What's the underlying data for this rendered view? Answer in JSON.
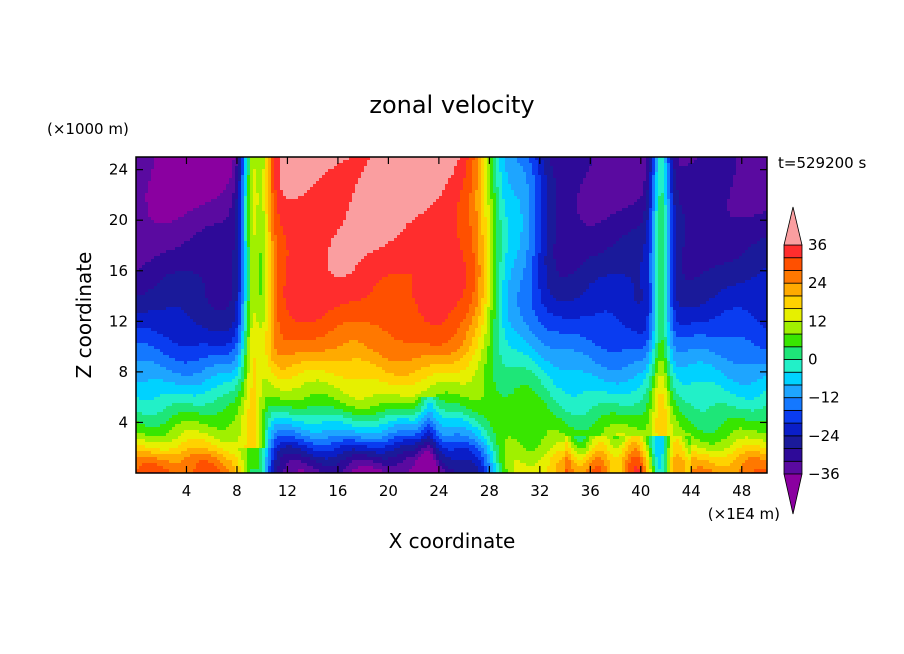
{
  "chart_data": {
    "type": "heatmap",
    "title": "zonal velocity",
    "xlabel": "X coordinate",
    "ylabel": "Z coordinate",
    "x_unit": "(×1E4 m)",
    "y_unit": "(×1000 m)",
    "time_label": "t=529200 s",
    "xlim": [
      0,
      50
    ],
    "ylim": [
      0,
      25
    ],
    "x_ticks": [
      4,
      8,
      12,
      16,
      20,
      24,
      28,
      32,
      36,
      40,
      44,
      48
    ],
    "y_ticks": [
      4,
      8,
      12,
      16,
      20,
      24
    ],
    "colorbar": {
      "levels": [
        -40,
        -36,
        -32,
        -28,
        -24,
        -20,
        -16,
        -12,
        -8,
        -4,
        0,
        4,
        8,
        12,
        16,
        20,
        24,
        28,
        32,
        36,
        40
      ],
      "tick_labels": [
        "36",
        "24",
        "12",
        "0",
        "−12",
        "−24",
        "−36"
      ],
      "tick_values": [
        36,
        24,
        12,
        0,
        -12,
        -24,
        -36
      ],
      "colors": [
        "#8a00a0",
        "#5a0aa0",
        "#2e0a98",
        "#1a1a9a",
        "#0a1ec8",
        "#0a3cf0",
        "#1478ff",
        "#1ea5ff",
        "#00d2ff",
        "#22f0c8",
        "#1ee678",
        "#38e600",
        "#a0f000",
        "#e6f000",
        "#ffd200",
        "#ffaa00",
        "#ff7800",
        "#ff5000",
        "#ff2d2d",
        "#fa9ea0"
      ],
      "extend": "both"
    },
    "x": [
      0,
      2,
      4,
      6,
      8,
      9,
      9.5,
      10,
      10.5,
      11,
      12,
      14,
      16,
      18,
      20,
      22,
      24,
      26,
      27,
      28,
      29,
      30,
      30.5,
      31,
      31.5,
      32,
      32.5,
      33,
      34,
      35,
      36,
      38,
      40,
      41,
      41.5,
      42,
      43,
      44,
      46,
      48,
      50
    ],
    "z_profiles": {
      "z": [
        0,
        1,
        2,
        3,
        4,
        5,
        6,
        7,
        8,
        9,
        10,
        12,
        14,
        16,
        18,
        20,
        22,
        25
      ],
      "west_jet": [
        28,
        24,
        16,
        10,
        6,
        2,
        -2,
        -6,
        -10,
        -14,
        -18,
        -24,
        -28,
        -30,
        -32,
        -34,
        -36,
        -38
      ],
      "east_jet": [
        -36,
        -30,
        -22,
        -12,
        -4,
        4,
        10,
        14,
        18,
        22,
        26,
        30,
        33,
        34,
        35,
        36,
        37,
        38
      ]
    }
  }
}
